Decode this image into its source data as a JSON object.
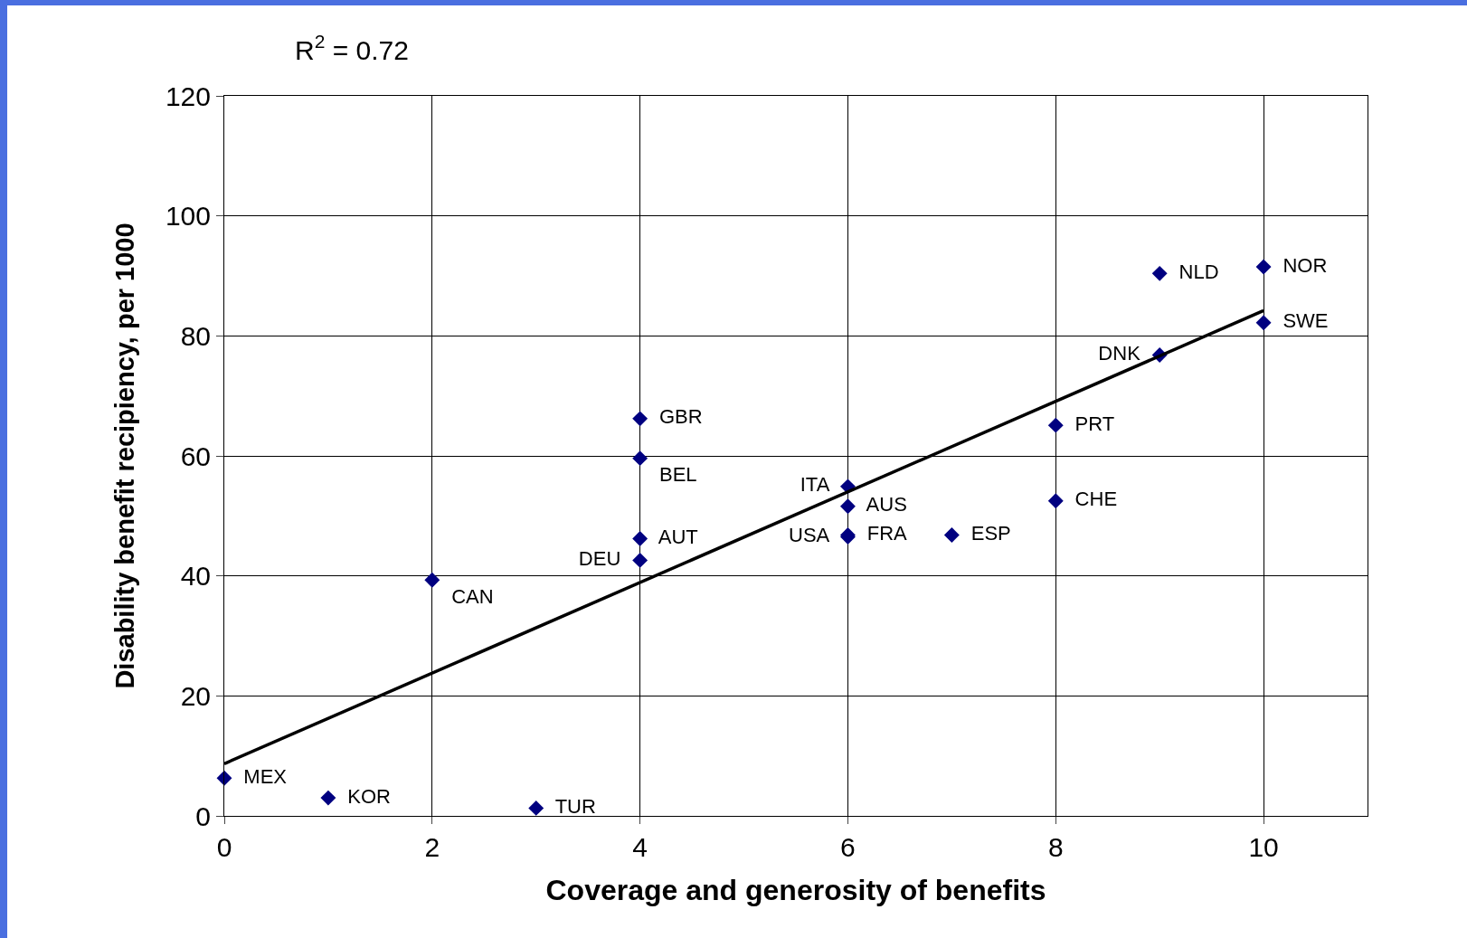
{
  "chart_data": {
    "type": "scatter",
    "xlabel": "Coverage and generosity of benefits",
    "ylabel": "Disability benefit recipiency, per 1000",
    "annotations": [
      "R$^{2}$ = 0.72"
    ],
    "xlim": [
      0,
      11
    ],
    "xticks": [
      0,
      2,
      4,
      6,
      8,
      10
    ],
    "ylim": [
      0,
      120
    ],
    "yticks": [
      0,
      20,
      40,
      60,
      80,
      100,
      120
    ],
    "grid": true,
    "series": [
      {
        "marker": "diamond",
        "color": "#000080",
        "x": [
          0,
          1,
          3,
          2,
          4,
          4,
          4,
          4,
          6,
          6,
          6,
          6,
          7,
          8,
          8,
          9,
          9,
          10,
          10
        ],
        "values": [
          6.3,
          3.0,
          1.3,
          39.3,
          42.6,
          46.2,
          59.6,
          66.2,
          54.9,
          51.6,
          46.8,
          46.5,
          46.8,
          52.5,
          65.1,
          76.8,
          90.4,
          91.5,
          82.2
        ],
        "value_labels": [
          "MEX",
          "KOR",
          "TUR",
          "CAN",
          "DEU",
          "AUT",
          "BEL",
          "GBR",
          "ITA",
          "AUS",
          "FRA",
          "USA",
          "ESP",
          "CHE",
          "PRT",
          "DNK",
          "NLD",
          "NOR",
          "SWE"
        ]
      },
      {
        "type": "line",
        "color": "#000000",
        "x": [
          0,
          10
        ],
        "values": [
          8.7,
          84.2
        ]
      }
    ]
  }
}
